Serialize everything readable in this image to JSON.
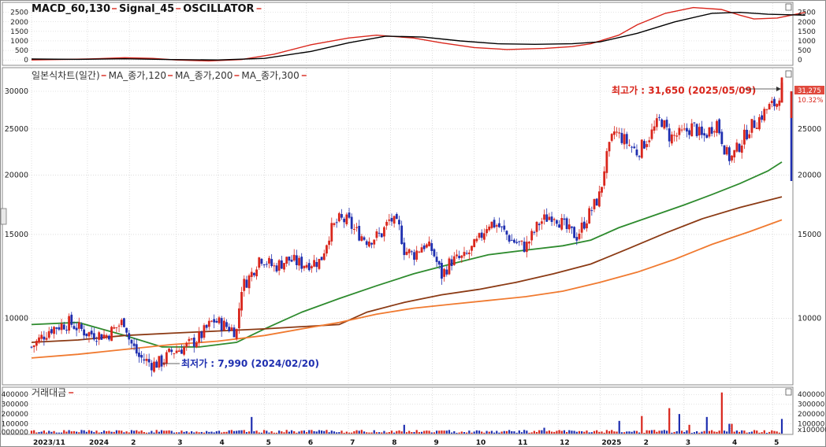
{
  "chart_data": [
    {
      "type": "line",
      "panel": "macd",
      "title": "MACD_60,130",
      "title_parts": [
        "MACD_60,130",
        "Signal_45",
        "OSCILLATOR"
      ],
      "y_ticks": [
        2500,
        2000,
        1500,
        1000,
        500,
        0
      ],
      "ylim": [
        -200,
        2900
      ],
      "series": [
        {
          "name": "MACD_60,130",
          "color": "#d9261c",
          "values": [
            [
              0,
              0
            ],
            [
              12,
              50
            ],
            [
              20,
              120
            ],
            [
              26,
              80
            ],
            [
              31,
              0
            ],
            [
              38,
              -50
            ],
            [
              45,
              20
            ],
            [
              52,
              300
            ],
            [
              60,
              800
            ],
            [
              68,
              1150
            ],
            [
              74,
              1300
            ],
            [
              82,
              1150
            ],
            [
              88,
              900
            ],
            [
              95,
              650
            ],
            [
              102,
              550
            ],
            [
              110,
              600
            ],
            [
              116,
              700
            ],
            [
              120,
              850
            ],
            [
              126,
              1300
            ],
            [
              130,
              1850
            ],
            [
              136,
              2450
            ],
            [
              142,
              2750
            ],
            [
              148,
              2650
            ],
            [
              152,
              2350
            ],
            [
              155,
              2150
            ],
            [
              160,
              2200
            ],
            [
              166,
              2500
            ]
          ]
        },
        {
          "name": "Signal_45",
          "color": "#000000",
          "values": [
            [
              0,
              50
            ],
            [
              10,
              30
            ],
            [
              20,
              60
            ],
            [
              30,
              20
            ],
            [
              40,
              0
            ],
            [
              50,
              80
            ],
            [
              60,
              450
            ],
            [
              68,
              900
            ],
            [
              76,
              1250
            ],
            [
              84,
              1200
            ],
            [
              92,
              1000
            ],
            [
              100,
              850
            ],
            [
              108,
              820
            ],
            [
              116,
              850
            ],
            [
              122,
              950
            ],
            [
              130,
              1400
            ],
            [
              138,
              2000
            ],
            [
              146,
              2450
            ],
            [
              152,
              2500
            ],
            [
              158,
              2400
            ],
            [
              166,
              2350
            ]
          ]
        }
      ]
    },
    {
      "type": "candlestick",
      "panel": "price",
      "title": "일본식차트(일간)",
      "title_parts": [
        "일본식차트(일간)",
        "MA_종가,120",
        "MA_종가,200",
        "MA_종가,300"
      ],
      "y_ticks": [
        30000,
        25000,
        20000,
        15000,
        10000
      ],
      "ylim": [
        7300,
        32500
      ],
      "y_scale": "log",
      "x_ticks": [
        "2023/11",
        "2024",
        "2",
        "3",
        "4",
        "5",
        "6",
        "7",
        "8",
        "9",
        "10",
        "11",
        "12",
        "2025",
        "2",
        "3",
        "4",
        "5"
      ],
      "x_tick_positions": [
        0,
        12,
        21,
        31,
        40,
        50,
        59,
        68,
        77,
        86,
        95,
        104,
        113,
        122,
        131,
        140,
        150,
        159
      ],
      "current_price": "31,275",
      "change_percent": "10.32%",
      "high_annotation": "최고가 : 31,650 (2025/05/09)",
      "low_annotation": "최저가 : 7,990 (2024/02/20)",
      "close_path": [
        [
          0,
          8700
        ],
        [
          4,
          9500
        ],
        [
          8,
          9800
        ],
        [
          12,
          9300
        ],
        [
          16,
          9200
        ],
        [
          20,
          9900
        ],
        [
          21,
          9000
        ],
        [
          23,
          8300
        ],
        [
          26,
          8000
        ],
        [
          28,
          8100
        ],
        [
          30,
          8500
        ],
        [
          33,
          8700
        ],
        [
          36,
          9100
        ],
        [
          39,
          9900
        ],
        [
          42,
          9600
        ],
        [
          44,
          9400
        ],
        [
          45,
          11600
        ],
        [
          47,
          12300
        ],
        [
          49,
          13500
        ],
        [
          52,
          12800
        ],
        [
          55,
          13300
        ],
        [
          58,
          13000
        ],
        [
          62,
          13200
        ],
        [
          64,
          15200
        ],
        [
          66,
          16100
        ],
        [
          68,
          16000
        ],
        [
          69,
          15400
        ],
        [
          72,
          14600
        ],
        [
          75,
          15000
        ],
        [
          77,
          16200
        ],
        [
          79,
          15400
        ],
        [
          80,
          13900
        ],
        [
          82,
          13600
        ],
        [
          84,
          14300
        ],
        [
          86,
          13900
        ],
        [
          88,
          12300
        ],
        [
          90,
          13200
        ],
        [
          93,
          13400
        ],
        [
          96,
          14600
        ],
        [
          98,
          15900
        ],
        [
          100,
          15700
        ],
        [
          103,
          14600
        ],
        [
          106,
          14100
        ],
        [
          109,
          15900
        ],
        [
          112,
          16600
        ],
        [
          115,
          15300
        ],
        [
          117,
          14900
        ],
        [
          120,
          16800
        ],
        [
          122,
          18200
        ],
        [
          123,
          21000
        ],
        [
          125,
          24700
        ],
        [
          127,
          23800
        ],
        [
          130,
          22300
        ],
        [
          133,
          24500
        ],
        [
          135,
          26300
        ],
        [
          137,
          24000
        ],
        [
          140,
          24500
        ],
        [
          142,
          25400
        ],
        [
          144,
          23900
        ],
        [
          147,
          25900
        ],
        [
          149,
          22300
        ],
        [
          150,
          21600
        ],
        [
          152,
          23200
        ],
        [
          154,
          25100
        ],
        [
          156,
          26200
        ],
        [
          158,
          27700
        ],
        [
          160,
          28400
        ],
        [
          161,
          31275
        ]
      ],
      "series": [
        {
          "name": "MA_종가,120",
          "color": "#2e8b2e",
          "values": [
            [
              0,
              9700
            ],
            [
              10,
              9800
            ],
            [
              20,
              9200
            ],
            [
              28,
              8700
            ],
            [
              36,
              8700
            ],
            [
              44,
              8900
            ],
            [
              50,
              9500
            ],
            [
              58,
              10300
            ],
            [
              66,
              11000
            ],
            [
              74,
              11700
            ],
            [
              82,
              12400
            ],
            [
              90,
              13000
            ],
            [
              98,
              13600
            ],
            [
              106,
              13900
            ],
            [
              114,
              14200
            ],
            [
              120,
              14600
            ],
            [
              126,
              15500
            ],
            [
              134,
              16500
            ],
            [
              140,
              17300
            ],
            [
              146,
              18200
            ],
            [
              152,
              19200
            ],
            [
              158,
              20400
            ],
            [
              161,
              21300
            ]
          ]
        },
        {
          "name": "MA_종가,200",
          "color": "#8b3a14",
          "values": [
            [
              0,
              8900
            ],
            [
              10,
              9000
            ],
            [
              20,
              9200
            ],
            [
              30,
              9300
            ],
            [
              40,
              9400
            ],
            [
              50,
              9500
            ],
            [
              58,
              9600
            ],
            [
              66,
              9700
            ],
            [
              72,
              10300
            ],
            [
              80,
              10800
            ],
            [
              88,
              11200
            ],
            [
              96,
              11500
            ],
            [
              104,
              11900
            ],
            [
              112,
              12400
            ],
            [
              120,
              13000
            ],
            [
              128,
              14000
            ],
            [
              136,
              15100
            ],
            [
              144,
              16200
            ],
            [
              152,
              17100
            ],
            [
              161,
              18000
            ]
          ]
        },
        {
          "name": "MA_종가,300",
          "color": "#f07a30",
          "values": [
            [
              0,
              8250
            ],
            [
              10,
              8400
            ],
            [
              20,
              8600
            ],
            [
              30,
              8800
            ],
            [
              40,
              8950
            ],
            [
              50,
              9200
            ],
            [
              58,
              9500
            ],
            [
              66,
              9800
            ],
            [
              74,
              10200
            ],
            [
              82,
              10500
            ],
            [
              90,
              10700
            ],
            [
              98,
              10900
            ],
            [
              106,
              11100
            ],
            [
              114,
              11400
            ],
            [
              122,
              11900
            ],
            [
              130,
              12500
            ],
            [
              138,
              13300
            ],
            [
              146,
              14300
            ],
            [
              154,
              15200
            ],
            [
              161,
              16100
            ]
          ]
        }
      ]
    },
    {
      "type": "bar",
      "panel": "volume",
      "title": "거래대금",
      "y_ticks": [
        400000,
        300000,
        200000,
        100000,
        1000000
      ],
      "y_tick_labels": [
        "400000",
        "300000",
        "200000",
        "100000",
        "1000000"
      ],
      "x_unit_label": "x1000000",
      "ylim": [
        0,
        450000
      ],
      "spikes": [
        [
          47,
          170000
        ],
        [
          80,
          90000
        ],
        [
          110,
          60000
        ],
        [
          126,
          130000
        ],
        [
          131,
          180000
        ],
        [
          137,
          260000
        ],
        [
          139,
          200000
        ],
        [
          141,
          90000
        ],
        [
          145,
          170000
        ],
        [
          148,
          420000
        ],
        [
          150,
          100000
        ],
        [
          161,
          150000
        ]
      ]
    }
  ],
  "colors": {
    "up": "#d9261c",
    "down": "#1f2fb0",
    "grid": "#c8c8c8",
    "panel_border": "#8a8a8a"
  },
  "icons": [
    "window-control-icon",
    "scroll-handle-icon"
  ]
}
